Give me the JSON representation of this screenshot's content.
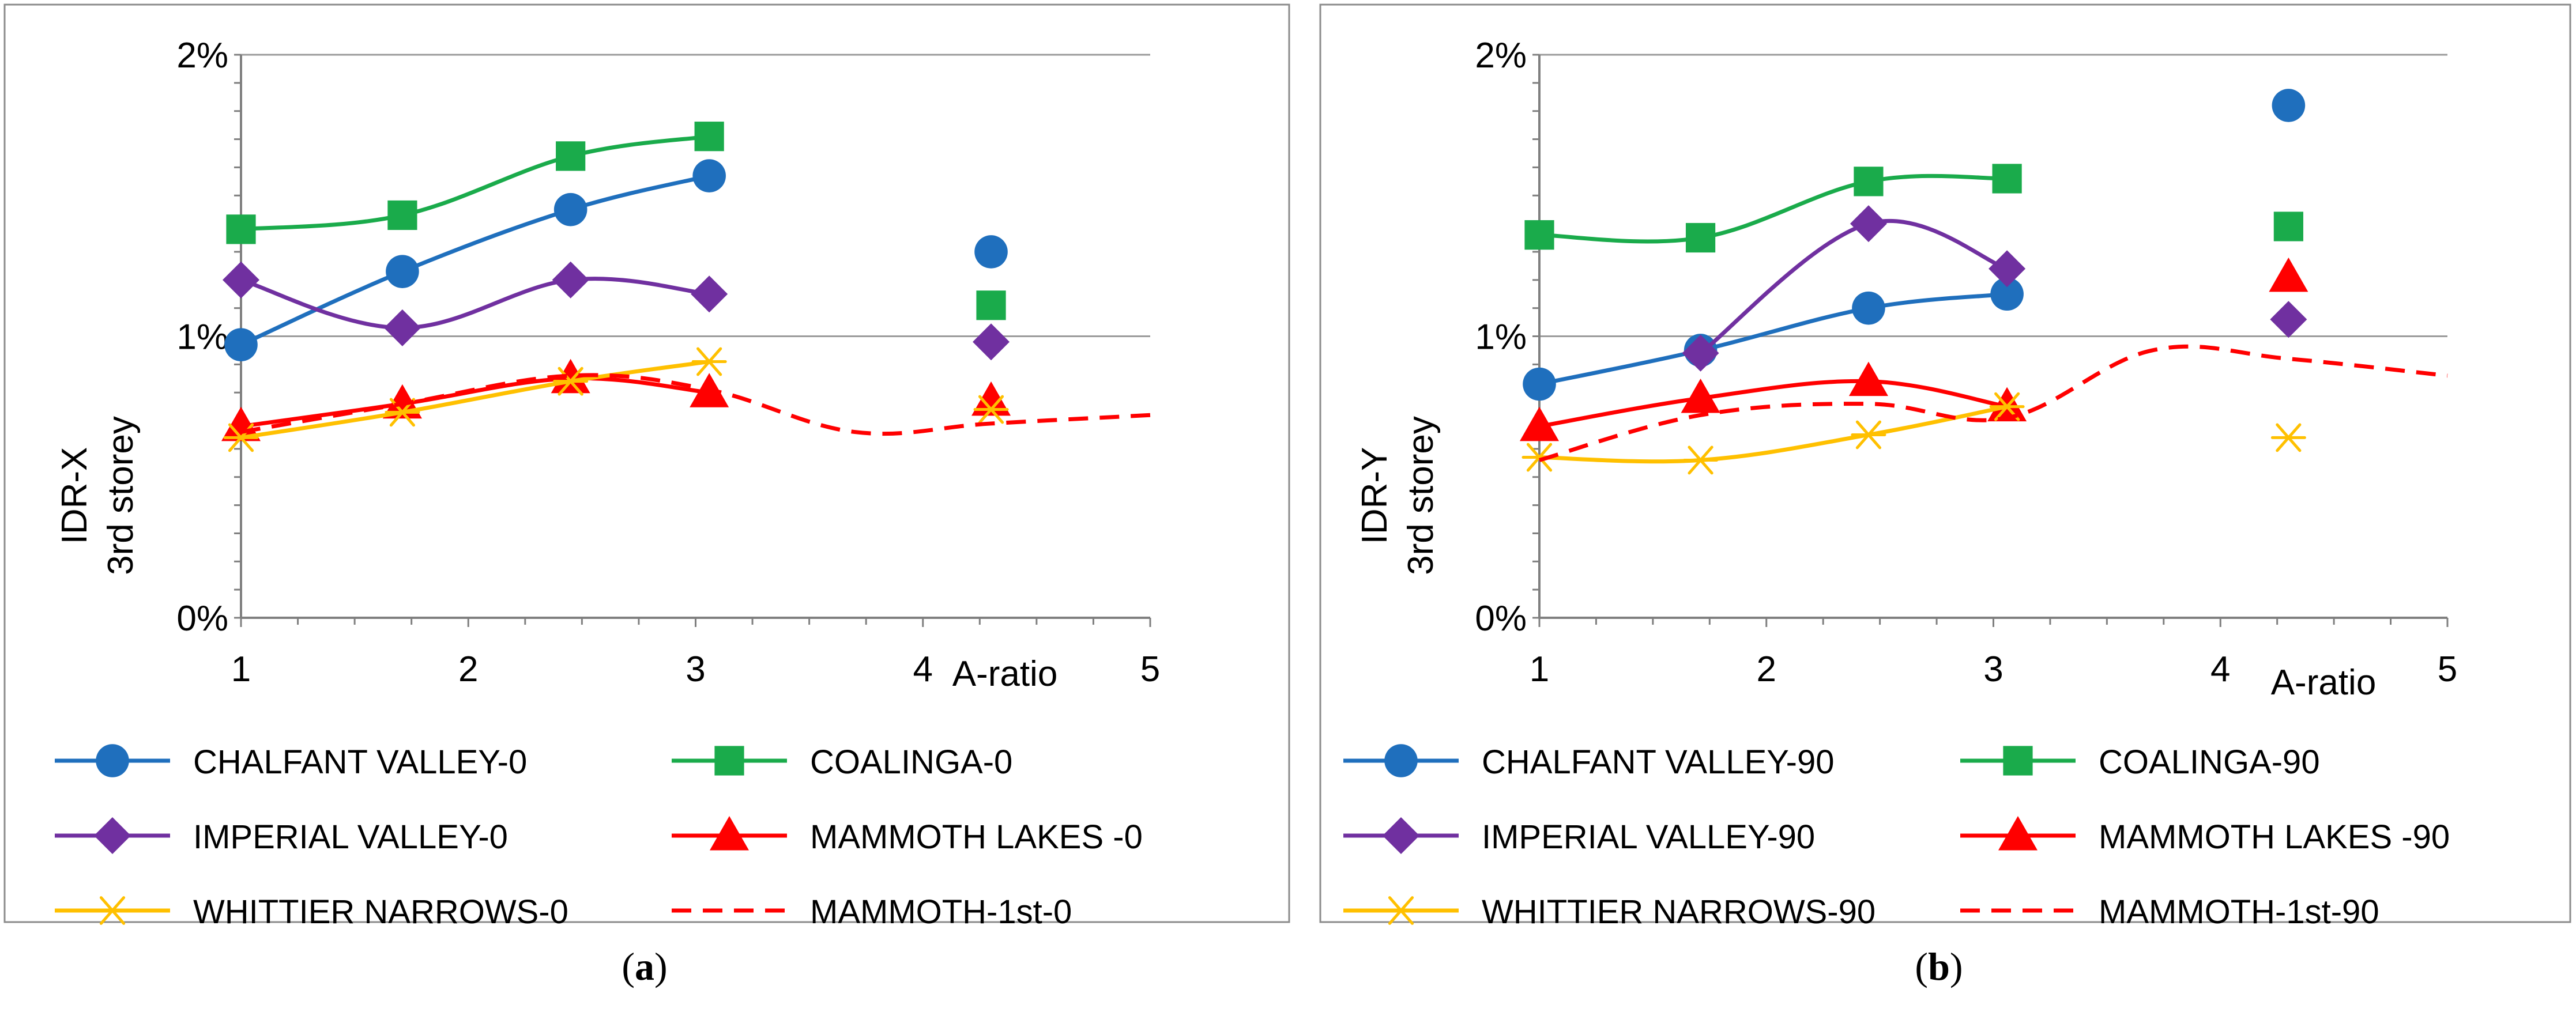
{
  "chart_data": [
    {
      "type": "line",
      "id": "a",
      "caption_letter": "a",
      "xlabel": "A-ratio",
      "ylabel_line1": "IDR-X",
      "ylabel_line2": "3rd storey",
      "xlim": [
        1,
        5
      ],
      "ylim": [
        0,
        2
      ],
      "x_ticks": [
        1,
        2,
        3,
        4,
        5
      ],
      "y_ticks": [
        {
          "value": 0,
          "label": "0%"
        },
        {
          "value": 1,
          "label": "1%"
        },
        {
          "value": 2,
          "label": "2%"
        }
      ],
      "series": [
        {
          "name": "CHALFANT VALLEY-0",
          "color": "#1f6fbd",
          "marker": "circle",
          "dash": false,
          "x": [
            1,
            1.71,
            2.45,
            3.06
          ],
          "y": [
            0.97,
            1.23,
            1.45,
            1.57
          ],
          "extra": [
            {
              "x": 4.3,
              "y": 1.3
            }
          ]
        },
        {
          "name": "COALINGA-0",
          "color": "#1aab4b",
          "marker": "square",
          "dash": false,
          "x": [
            1,
            1.71,
            2.45,
            3.06
          ],
          "y": [
            1.38,
            1.43,
            1.64,
            1.71
          ],
          "extra": [
            {
              "x": 4.3,
              "y": 1.11
            }
          ]
        },
        {
          "name": "IMPERIAL VALLEY-0",
          "color": "#7030a0",
          "marker": "diamond",
          "dash": false,
          "x": [
            1,
            1.71,
            2.45,
            3.06
          ],
          "y": [
            1.2,
            1.03,
            1.2,
            1.15
          ],
          "extra": [
            {
              "x": 4.3,
              "y": 0.98
            }
          ]
        },
        {
          "name": "MAMMOTH LAKES -0",
          "color": "#ff0000",
          "marker": "triangle",
          "dash": false,
          "x": [
            1,
            1.71,
            2.45,
            3.06
          ],
          "y": [
            0.68,
            0.76,
            0.85,
            0.8
          ],
          "extra": [
            {
              "x": 4.3,
              "y": 0.77
            }
          ]
        },
        {
          "name": "WHITTIER NARROWS-0",
          "color": "#ffc000",
          "marker": "asterisk",
          "dash": false,
          "x": [
            1,
            1.71,
            2.45,
            3.06
          ],
          "y": [
            0.64,
            0.73,
            0.84,
            0.91
          ],
          "extra": [
            {
              "x": 4.3,
              "y": 0.74
            }
          ]
        },
        {
          "name": "MAMMOTH-1st-0",
          "color": "#ff0000",
          "marker": "none",
          "dash": true,
          "x": [
            1,
            1.71,
            2.45,
            3.06,
            3.7,
            4.3,
            5.0
          ],
          "y": [
            0.66,
            0.76,
            0.86,
            0.81,
            0.66,
            0.69,
            0.72
          ],
          "extra": []
        }
      ]
    },
    {
      "type": "line",
      "id": "b",
      "caption_letter": "b",
      "xlabel": "A-ratio",
      "ylabel_line1": "IDR-Y",
      "ylabel_line2": "3rd storey",
      "xlim": [
        1,
        5
      ],
      "ylim": [
        0,
        2
      ],
      "x_ticks": [
        1,
        2,
        3,
        4,
        5
      ],
      "y_ticks": [
        {
          "value": 0,
          "label": "0%"
        },
        {
          "value": 1,
          "label": "1%"
        },
        {
          "value": 2,
          "label": "2%"
        }
      ],
      "series": [
        {
          "name": "CHALFANT VALLEY-90",
          "color": "#1f6fbd",
          "marker": "circle",
          "dash": false,
          "x": [
            1,
            1.71,
            2.45,
            3.06
          ],
          "y": [
            0.83,
            0.95,
            1.1,
            1.15
          ],
          "extra": [
            {
              "x": 4.3,
              "y": 1.82
            }
          ]
        },
        {
          "name": "COALINGA-90",
          "color": "#1aab4b",
          "marker": "square",
          "dash": false,
          "x": [
            1,
            1.71,
            2.45,
            3.06
          ],
          "y": [
            1.36,
            1.35,
            1.55,
            1.56
          ],
          "extra": [
            {
              "x": 4.3,
              "y": 1.39
            }
          ]
        },
        {
          "name": "IMPERIAL VALLEY-90",
          "color": "#7030a0",
          "marker": "diamond",
          "dash": false,
          "x": [
            1.71,
            2.45,
            3.06
          ],
          "y": [
            0.94,
            1.4,
            1.24
          ],
          "extra": [
            {
              "x": 4.3,
              "y": 1.06
            }
          ]
        },
        {
          "name": "MAMMOTH LAKES -90",
          "color": "#ff0000",
          "marker": "triangle",
          "dash": false,
          "x": [
            1,
            1.71,
            2.45,
            3.06
          ],
          "y": [
            0.68,
            0.78,
            0.84,
            0.75
          ],
          "extra": [
            {
              "x": 4.3,
              "y": 1.21
            }
          ]
        },
        {
          "name": "WHITTIER NARROWS-90",
          "color": "#ffc000",
          "marker": "asterisk",
          "dash": false,
          "x": [
            1,
            1.71,
            2.45,
            3.06
          ],
          "y": [
            0.57,
            0.56,
            0.65,
            0.75
          ],
          "extra": [
            {
              "x": 4.3,
              "y": 0.64
            }
          ]
        },
        {
          "name": "MAMMOTH-1st-90",
          "color": "#ff0000",
          "marker": "none",
          "dash": true,
          "x": [
            1,
            1.71,
            2.45,
            3.06,
            3.7,
            4.3,
            5.0
          ],
          "y": [
            0.56,
            0.72,
            0.76,
            0.71,
            0.95,
            0.92,
            0.86
          ],
          "extra": []
        }
      ]
    }
  ]
}
